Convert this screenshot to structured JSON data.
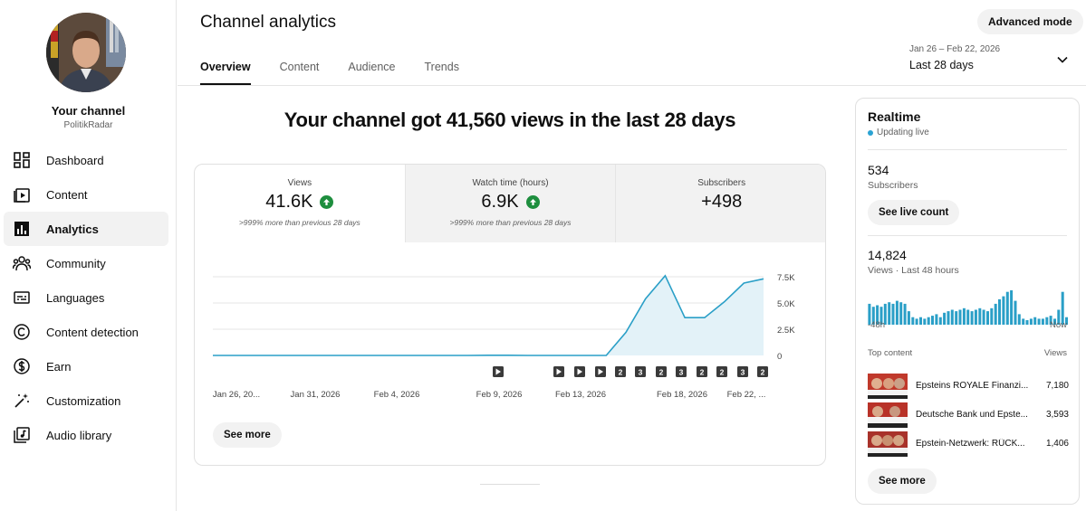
{
  "sidebar": {
    "channel_title": "Your channel",
    "channel_handle": "PolitikRadar",
    "items": [
      {
        "label": "Dashboard",
        "icon": "dashboard-icon"
      },
      {
        "label": "Content",
        "icon": "content-icon"
      },
      {
        "label": "Analytics",
        "icon": "analytics-icon",
        "active": true
      },
      {
        "label": "Community",
        "icon": "community-icon"
      },
      {
        "label": "Languages",
        "icon": "languages-icon"
      },
      {
        "label": "Content detection",
        "icon": "copyright-icon"
      },
      {
        "label": "Earn",
        "icon": "dollar-icon"
      },
      {
        "label": "Customization",
        "icon": "magic-wand-icon"
      },
      {
        "label": "Audio library",
        "icon": "audio-library-icon"
      }
    ]
  },
  "header": {
    "title": "Channel analytics",
    "tabs": [
      "Overview",
      "Content",
      "Audience",
      "Trends"
    ],
    "advanced_mode": "Advanced mode",
    "date_range": "Jan 26 – Feb 22, 2026",
    "date_label": "Last 28 days"
  },
  "main": {
    "headline": "Your channel got 41,560 views in the last 28 days",
    "metrics": [
      {
        "label": "Views",
        "value": "41.6K",
        "note": ">999% more than previous 28 days",
        "up": true
      },
      {
        "label": "Watch time (hours)",
        "value": "6.9K",
        "note": ">999% more than previous 28 days",
        "up": true
      },
      {
        "label": "Subscribers",
        "value": "+498",
        "note": ""
      }
    ],
    "see_more": "See more"
  },
  "chart_data": {
    "type": "area",
    "series": [
      {
        "values": [
          0,
          0,
          0,
          0,
          0,
          0,
          0,
          0,
          0,
          0,
          0,
          0,
          0,
          0,
          20,
          20,
          0,
          0,
          0,
          0,
          0,
          2200,
          5400,
          7600,
          3600,
          3600,
          5100,
          6900,
          7300
        ]
      }
    ],
    "x_ticks": [
      "Jan 26, 20...",
      "Jan 31, 2026",
      "Feb 4, 2026",
      "Feb 9, 2026",
      "Feb 13, 2026",
      "Feb 18, 2026",
      "Feb 22, ..."
    ],
    "y_ticks": [
      "0",
      "2.5K",
      "5.0K",
      "7.5K"
    ],
    "ylim": [
      0,
      7500
    ],
    "color": "#2a9fc7",
    "event_markers": [
      "play",
      "play",
      "play",
      "play",
      "2",
      "3",
      "2",
      "3",
      "2",
      "2",
      "3",
      "2"
    ]
  },
  "realtime": {
    "title": "Realtime",
    "status": "Updating live",
    "subscribers_value": "534",
    "subscribers_label": "Subscribers",
    "live_count_button": "See live count",
    "views_value": "14,824",
    "views_label": "Views · Last 48 hours",
    "spark": [
      14,
      12,
      13,
      12,
      14,
      15,
      14,
      16,
      15,
      14,
      9,
      5,
      4,
      5,
      4,
      5,
      6,
      7,
      5,
      8,
      9,
      10,
      9,
      10,
      11,
      10,
      9,
      10,
      11,
      10,
      9,
      11,
      14,
      17,
      19,
      22,
      23,
      16,
      7,
      4,
      3,
      4,
      5,
      4,
      4,
      5,
      6,
      4,
      10,
      22,
      5
    ],
    "axis_start": "-48h",
    "axis_end": "Now",
    "top_content_label": "Top content",
    "top_views_label": "Views",
    "top_content": [
      {
        "title": "Epsteins ROYALE Finanzi...",
        "views": "7,180"
      },
      {
        "title": "Deutsche Bank und Epste...",
        "views": "3,593"
      },
      {
        "title": "Epstein-Netzwerk: RÜCK...",
        "views": "1,406"
      }
    ],
    "see_more": "See more"
  }
}
